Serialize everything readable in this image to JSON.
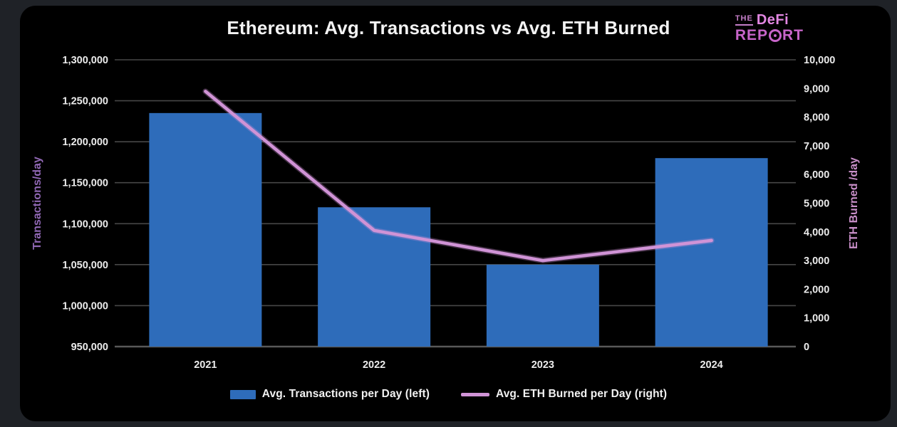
{
  "window": {
    "background_color": "#1f2227",
    "card_color": "#000000"
  },
  "logo": {
    "the": "THE",
    "defi": "DeFi",
    "report_pre": "REP",
    "report_post": "RT",
    "color": "#c765c9"
  },
  "chart_data": {
    "type": "combo-bar-line",
    "title": "Ethereum: Avg. Transactions vs Avg. ETH Burned",
    "categories": [
      "2021",
      "2022",
      "2023",
      "2024"
    ],
    "series": [
      {
        "name": "Avg. Transactions per Day (left)",
        "type": "bar",
        "axis": "left",
        "color": "#2e6cba",
        "values": [
          1235000,
          1120000,
          1050000,
          1180000
        ]
      },
      {
        "name": "Avg. ETH Burned per Day (right)",
        "type": "line",
        "axis": "right",
        "color": "#d093d6",
        "values": [
          8900,
          4050,
          3000,
          3700
        ]
      }
    ],
    "left_axis": {
      "label": "Transactions/day",
      "label_color": "#9168b5",
      "min": 950000,
      "max": 1300000,
      "step": 50000,
      "tick_labels": [
        "950,000",
        "1,000,000",
        "1,050,000",
        "1,100,000",
        "1,150,000",
        "1,200,000",
        "1,250,000",
        "1,300,000"
      ]
    },
    "right_axis": {
      "label": "ETH Burned /day",
      "label_color": "#c98fc9",
      "min": 0,
      "max": 10000,
      "step": 1000,
      "tick_labels": [
        "0",
        "1,000",
        "2,000",
        "3,000",
        "4,000",
        "5,000",
        "6,000",
        "7,000",
        "8,000",
        "9,000",
        "10,000"
      ]
    },
    "grid": {
      "show": true,
      "color": "#474747",
      "axis_line_color": "#585858"
    },
    "tick_label_color": "#ebebeb",
    "legend_position": "bottom"
  }
}
